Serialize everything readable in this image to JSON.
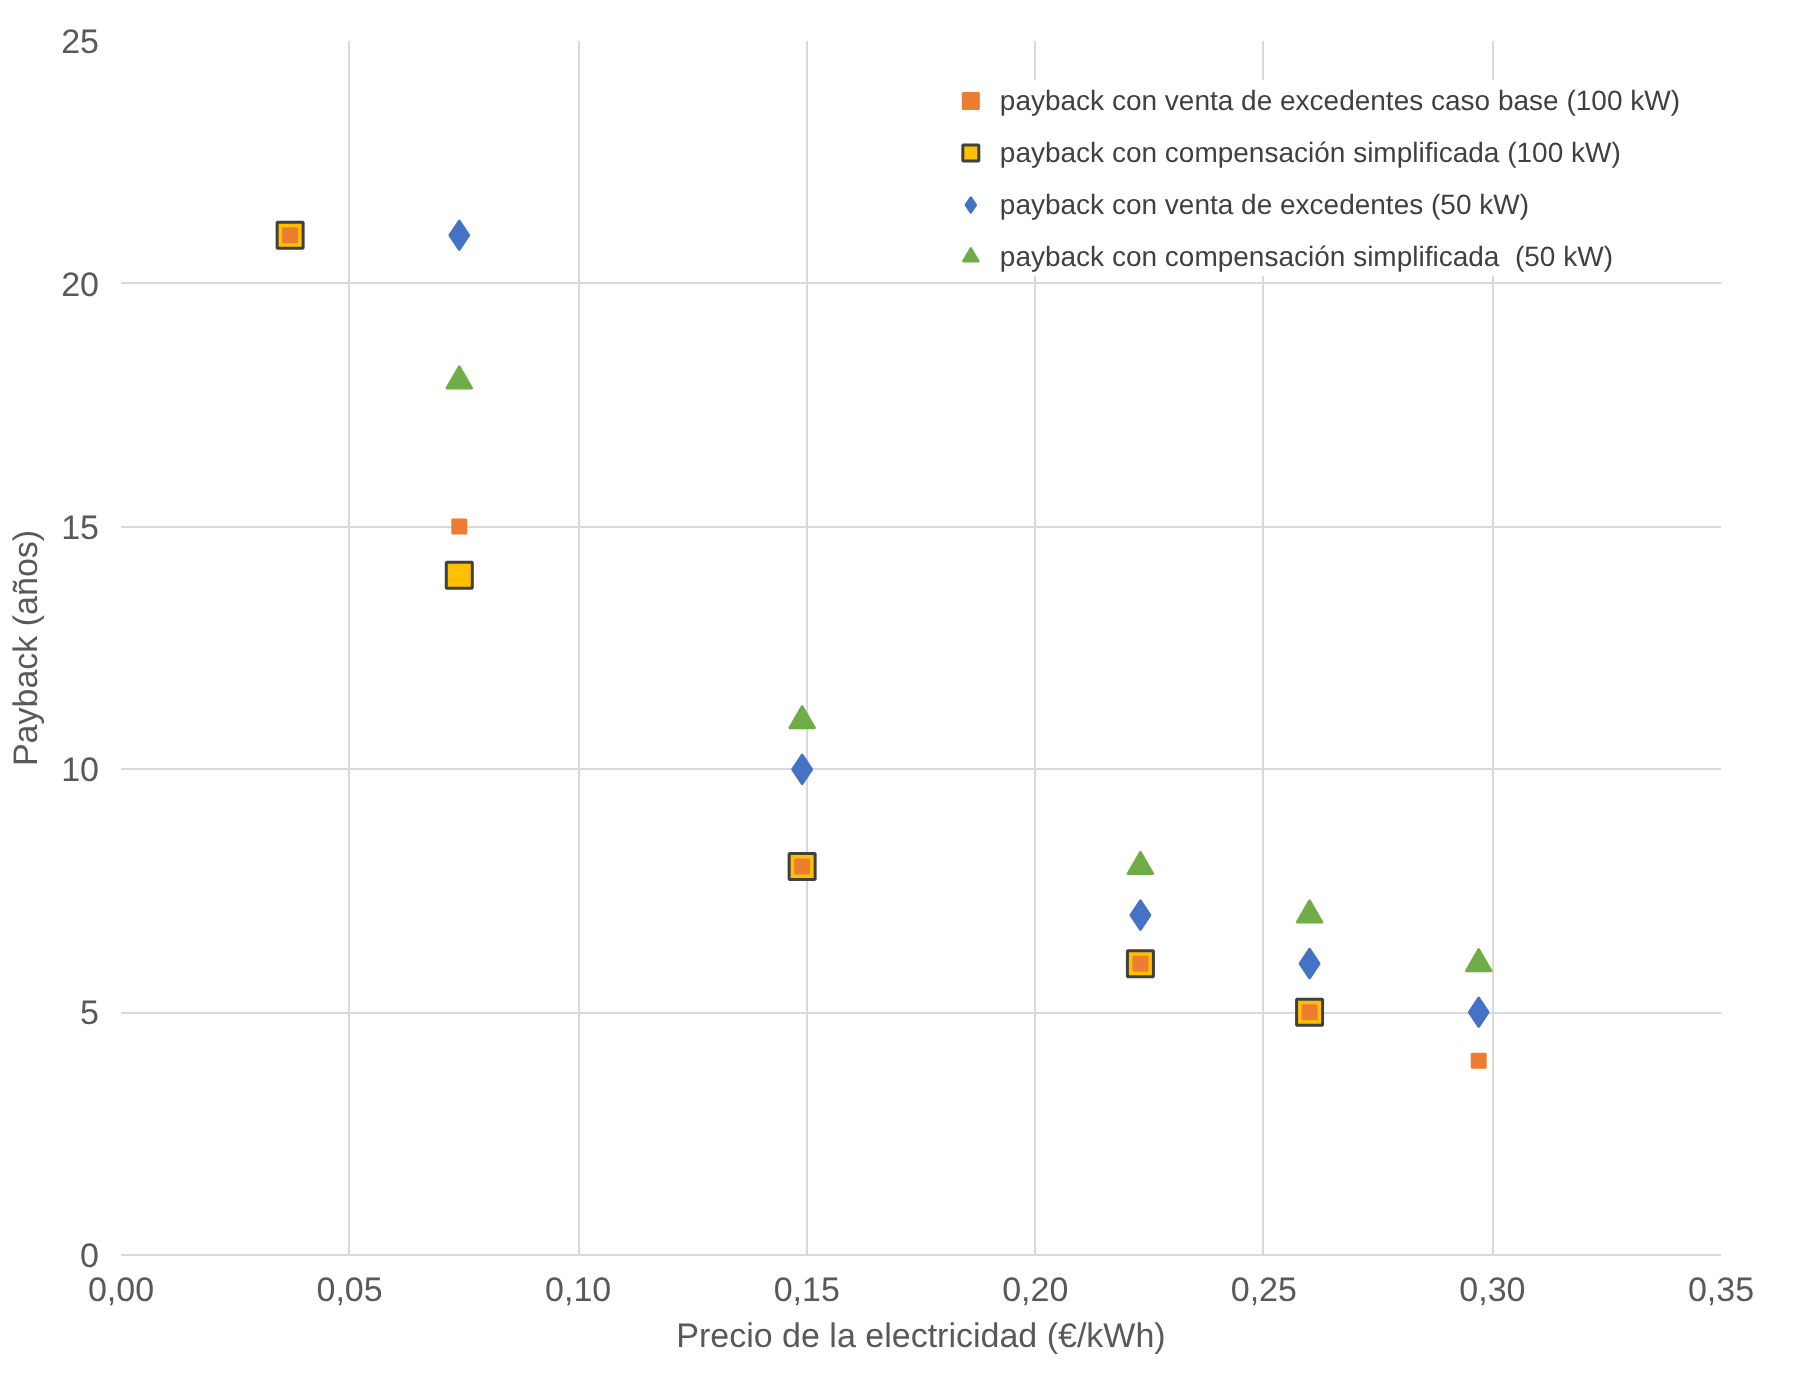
{
  "chart_data": {
    "type": "scatter",
    "xlabel": "Precio de la electricidad (€/kWh)",
    "ylabel": "Payback (años)",
    "xlim": [
      0,
      0.35
    ],
    "xticks": [
      {
        "value": 0,
        "label": "0,00"
      },
      {
        "value": 0.05,
        "label": "0,05"
      },
      {
        "value": 0.1,
        "label": "0,10"
      },
      {
        "value": 0.15,
        "label": "0,15"
      },
      {
        "value": 0.2,
        "label": "0,20"
      },
      {
        "value": 0.25,
        "label": "0,25"
      },
      {
        "value": 0.3,
        "label": "0,30"
      },
      {
        "value": 0.35,
        "label": "0,35"
      }
    ],
    "ylim": [
      0,
      25
    ],
    "yticks": [
      0,
      5,
      10,
      15,
      20,
      25
    ],
    "grid": true,
    "legend": "top right",
    "series": [
      {
        "name": "payback con compensación simplificada (100 kW)",
        "color": "#ffc000",
        "marker": "square",
        "x": [
          0.037,
          0.074,
          0.149,
          0.223,
          0.26
        ],
        "values": [
          21,
          14,
          8,
          6,
          5
        ]
      },
      {
        "name": "payback con venta de excedentes caso base (100 kW)",
        "color": "#ed7d31",
        "marker": "square",
        "x": [
          0.037,
          0.074,
          0.149,
          0.223,
          0.26,
          0.297
        ],
        "values": [
          21,
          15,
          8,
          6,
          5,
          4
        ]
      },
      {
        "name": "payback con venta de excedentes (50 kW)",
        "color": "#4472c4",
        "marker": "diamond",
        "x": [
          0.074,
          0.149,
          0.223,
          0.26,
          0.297
        ],
        "values": [
          21,
          10,
          7,
          6,
          5
        ]
      },
      {
        "name": "payback con compensación simplificada  (50 kW)",
        "color": "#70ad47",
        "marker": "triangle",
        "x": [
          0.074,
          0.149,
          0.223,
          0.26,
          0.297
        ],
        "values": [
          18,
          11,
          8,
          7,
          6
        ]
      }
    ]
  }
}
